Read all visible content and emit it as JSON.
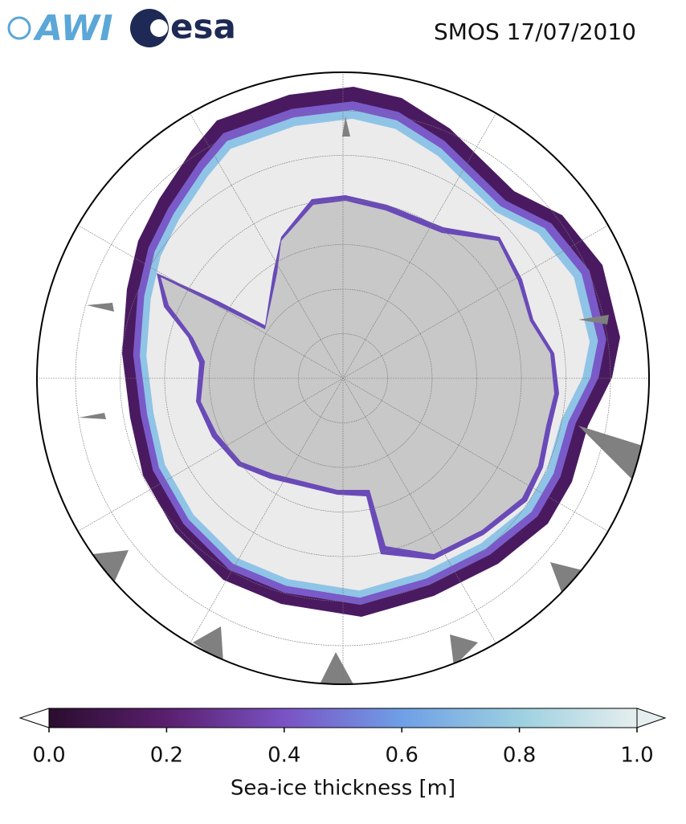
{
  "header": {
    "logos": [
      "AWI",
      "esa"
    ],
    "title": "SMOS 17/07/2010"
  },
  "colorbar": {
    "label": "Sea-ice thickness [m]",
    "lim": [
      0,
      1
    ],
    "ticks": [
      {
        "value": 0,
        "label": "0.0"
      },
      0.2,
      0.4,
      0.6,
      0.8,
      {
        "value": 1,
        "label": "1.0"
      }
    ],
    "colors": [
      "#2a0d2e",
      "#5a1f6e",
      "#7a52c4",
      "#6f9fe6",
      "#9cd0e0",
      "#e6eeee"
    ],
    "extend": "both"
  }
}
